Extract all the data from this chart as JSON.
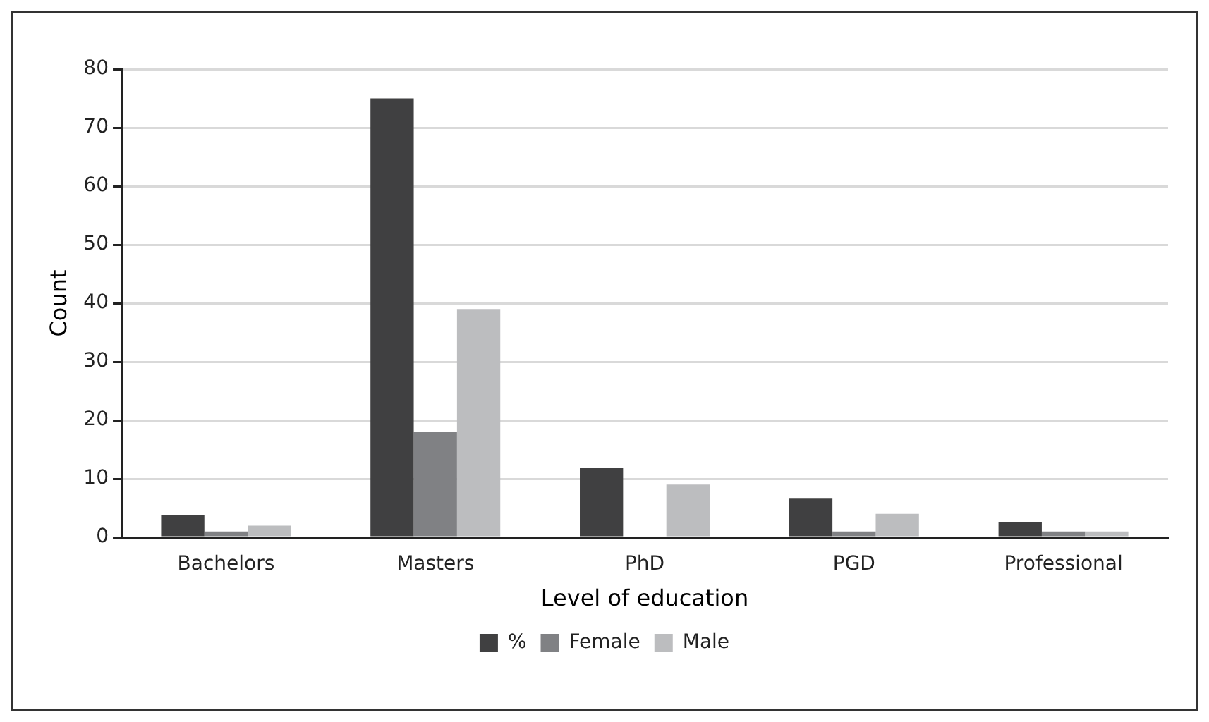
{
  "chart_data": {
    "type": "bar",
    "xlabel": "Level of education",
    "ylabel": "Count",
    "categories": [
      "Bachelors",
      "Masters",
      "PhD",
      "PGD",
      "Professional"
    ],
    "series": [
      {
        "name": "%",
        "color": "#404041",
        "values": [
          3.8,
          75,
          11.8,
          6.6,
          2.6
        ]
      },
      {
        "name": "Female",
        "color": "#808184",
        "values": [
          1,
          18,
          0,
          1,
          1
        ]
      },
      {
        "name": "Male",
        "color": "#bcbdbf",
        "values": [
          2,
          39,
          9,
          4,
          1
        ]
      }
    ],
    "ylim": [
      0,
      80
    ],
    "yticks": [
      0,
      10,
      20,
      30,
      40,
      50,
      60,
      70,
      80
    ],
    "grid": "y",
    "legend": "bottom"
  }
}
